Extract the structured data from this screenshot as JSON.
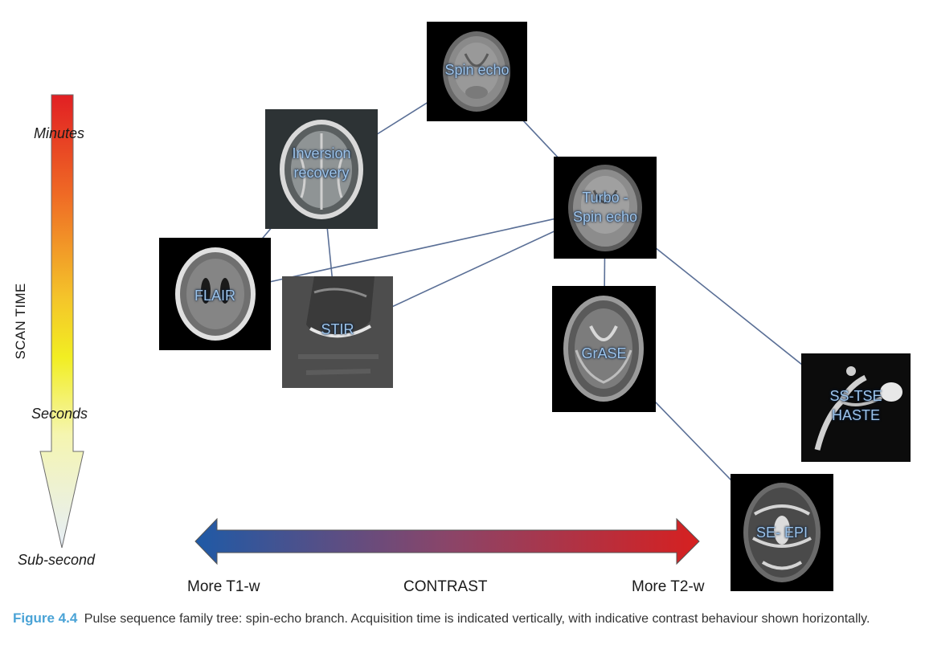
{
  "scan_time_axis": {
    "title": "SCAN TIME",
    "labels": [
      "Minutes",
      "Seconds",
      "Sub-second"
    ]
  },
  "contrast_axis": {
    "title": "CONTRAST",
    "left_label": "More T1-w",
    "right_label": "More T2-w",
    "left_color": "#1f5aa6",
    "right_color": "#d62020"
  },
  "nodes": {
    "spin_echo": {
      "line1": "Spin echo",
      "line2": ""
    },
    "inversion_recovery": {
      "line1": "Inversion",
      "line2": "recovery"
    },
    "turbo_spin_echo": {
      "line1": "Turbo -",
      "line2": "Spin echo"
    },
    "flair": {
      "line1": "FLAIR",
      "line2": ""
    },
    "stir": {
      "line1": "STIR",
      "line2": ""
    },
    "grase": {
      "line1": "GrASE",
      "line2": ""
    },
    "ss_tse": {
      "line1": "SS-TSE",
      "line2": "HASTE"
    },
    "se_epi": {
      "line1": "SE- EPI",
      "line2": ""
    }
  },
  "connections": [
    [
      "spin_echo",
      "inversion_recovery"
    ],
    [
      "spin_echo",
      "turbo_spin_echo"
    ],
    [
      "inversion_recovery",
      "flair"
    ],
    [
      "inversion_recovery",
      "stir"
    ],
    [
      "turbo_spin_echo",
      "flair"
    ],
    [
      "turbo_spin_echo",
      "stir"
    ],
    [
      "turbo_spin_echo",
      "grase"
    ],
    [
      "turbo_spin_echo",
      "ss_tse"
    ],
    [
      "grase",
      "se_epi"
    ]
  ],
  "colors": {
    "connector": "#5a6f96",
    "node_label": "#9cc3ea",
    "caption_prefix": "#4aa3d6"
  },
  "caption": {
    "prefix": "Figure 4.4",
    "text": "Pulse sequence family tree: spin-echo branch. Acquisition time is indicated vertically, with indicative contrast behaviour shown horizontally."
  }
}
